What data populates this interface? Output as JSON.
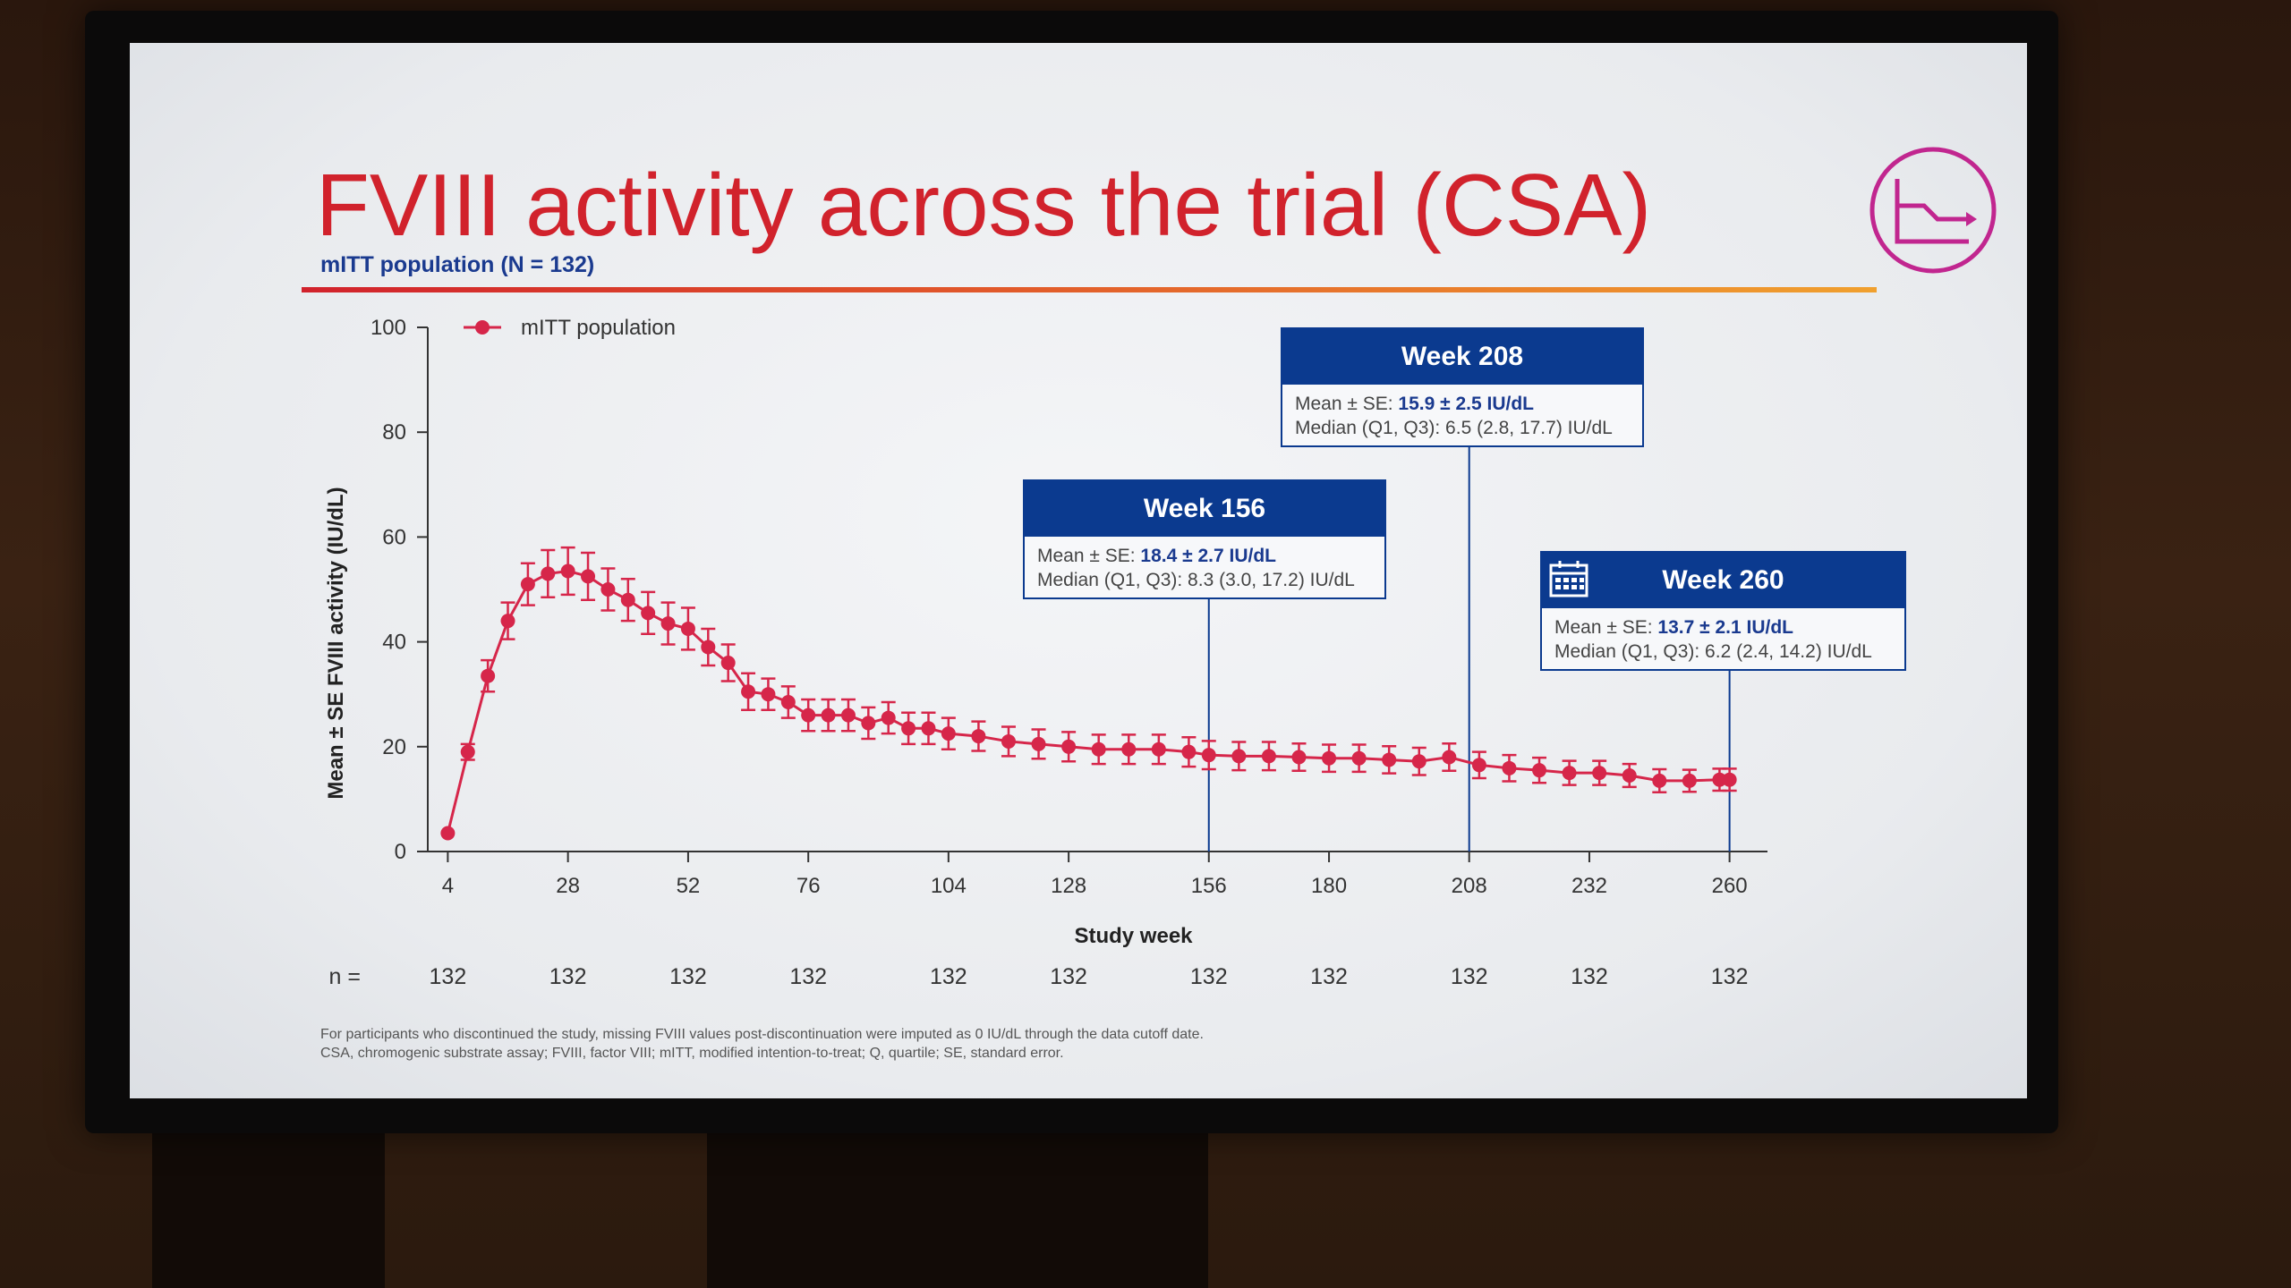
{
  "slide": {
    "title": "FVIII activity across the trial (CSA)",
    "subtitle": "mITT population (N = 132)",
    "footnote_lines": [
      "For participants who discontinued the study, missing FVIII values post-discontinuation were imputed as 0 IU/dL through the data cutoff date.",
      "CSA, chromogenic substrate assay; FVIII, factor VIII; mITT, modified intention-to-treat; Q, quartile; SE, standard error."
    ],
    "logo_icon": "line-chart-icon",
    "accent_color": "#d1222c",
    "navy_color": "#0b3a8f"
  },
  "callouts": [
    {
      "title": "Week 156",
      "mean_label": "Mean ± SE: ",
      "mean_value": "18.4 ± 2.7 IU/dL",
      "median_text": "Median (Q1, Q3): 8.3 (3.0, 17.2) IU/dL",
      "week": 156,
      "icon": ""
    },
    {
      "title": "Week 208",
      "mean_label": "Mean ± SE: ",
      "mean_value": "15.9 ± 2.5 IU/dL",
      "median_text": "Median (Q1, Q3): 6.5 (2.8, 17.7) IU/dL",
      "week": 208,
      "icon": ""
    },
    {
      "title": "Week 260",
      "mean_label": "Mean ± SE: ",
      "mean_value": "13.7 ± 2.1 IU/dL",
      "median_text": "Median (Q1, Q3): 6.2 (2.4, 14.2) IU/dL",
      "week": 260,
      "icon": "calendar-icon"
    }
  ],
  "chart_data": {
    "type": "line",
    "title": "",
    "xlabel": "Study week",
    "ylabel": "Mean ± SE FVIII activity (IU/dL)",
    "xlim": [
      0,
      264
    ],
    "ylim": [
      0,
      100
    ],
    "x_ticks": [
      4,
      28,
      52,
      76,
      104,
      128,
      156,
      180,
      208,
      232,
      260
    ],
    "y_ticks": [
      0,
      20,
      40,
      60,
      80,
      100
    ],
    "grid": false,
    "legend": {
      "position": "top-left",
      "entries": [
        "mITT population"
      ]
    },
    "series": [
      {
        "name": "mITT population",
        "color": "#d6264a",
        "x": [
          4,
          8,
          12,
          16,
          20,
          24,
          28,
          32,
          36,
          40,
          44,
          48,
          52,
          56,
          60,
          64,
          68,
          72,
          76,
          80,
          84,
          88,
          92,
          96,
          100,
          104,
          110,
          116,
          122,
          128,
          134,
          140,
          146,
          152,
          156,
          162,
          168,
          174,
          180,
          186,
          192,
          198,
          204,
          210,
          216,
          222,
          228,
          234,
          240,
          246,
          252,
          258,
          260
        ],
        "y": [
          3.5,
          19,
          33.5,
          44,
          51,
          53,
          53.5,
          52.5,
          50,
          48,
          45.5,
          43.5,
          42.5,
          39,
          36,
          30.5,
          30,
          28.5,
          26,
          26,
          26,
          24.5,
          25.5,
          23.5,
          23.5,
          22.5,
          22,
          21,
          20.5,
          20,
          19.5,
          19.5,
          19.5,
          19,
          18.4,
          18.2,
          18.2,
          18,
          17.8,
          17.8,
          17.5,
          17.2,
          18,
          16.5,
          15.9,
          15.5,
          15,
          15,
          14.5,
          13.5,
          13.5,
          13.7,
          13.7
        ],
        "se": [
          0.5,
          1.5,
          3,
          3.5,
          4,
          4.5,
          4.5,
          4.5,
          4,
          4,
          4,
          4,
          4,
          3.5,
          3.5,
          3.5,
          3,
          3,
          3,
          3,
          3,
          3,
          3,
          3,
          3,
          3,
          2.8,
          2.8,
          2.8,
          2.8,
          2.8,
          2.8,
          2.8,
          2.8,
          2.7,
          2.7,
          2.7,
          2.6,
          2.6,
          2.6,
          2.6,
          2.6,
          2.6,
          2.5,
          2.5,
          2.4,
          2.3,
          2.3,
          2.2,
          2.2,
          2.1,
          2.1,
          2.1
        ]
      }
    ],
    "n_at_risk": {
      "label": "n =",
      "weeks": [
        4,
        28,
        52,
        76,
        104,
        128,
        156,
        180,
        208,
        232,
        260
      ],
      "values": [
        "132",
        "132",
        "132",
        "132",
        "132",
        "132",
        "132",
        "132",
        "132",
        "132",
        "132"
      ]
    }
  }
}
